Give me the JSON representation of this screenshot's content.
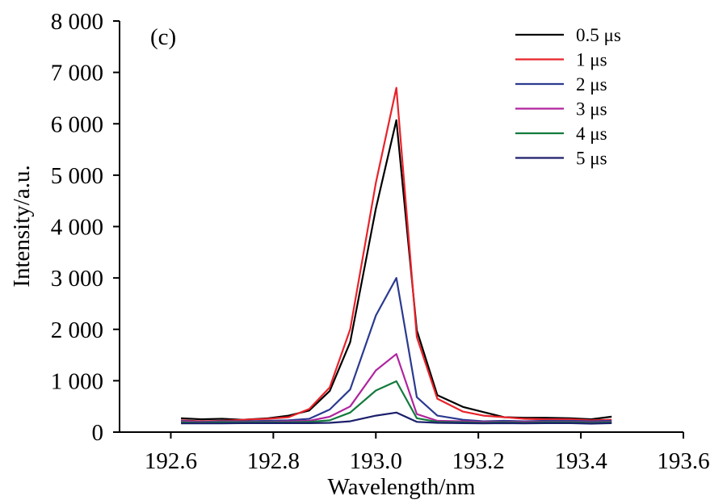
{
  "chart_data": {
    "type": "line",
    "panel_label": "(c)",
    "xlabel": "Wavelength/nm",
    "ylabel": "Intensity/a.u.",
    "xlim": [
      192.5,
      193.6
    ],
    "ylim": [
      0,
      8000
    ],
    "x_ticks": [
      192.6,
      192.8,
      193.0,
      193.2,
      193.4,
      193.6
    ],
    "x_tick_labels": [
      "192.6",
      "192.8",
      "193.0",
      "193.2",
      "193.4",
      "193.6"
    ],
    "y_ticks": [
      0,
      1000,
      2000,
      3000,
      4000,
      5000,
      6000,
      7000,
      8000
    ],
    "y_tick_labels": [
      "0",
      "1 000",
      "2 000",
      "3 000",
      "4 000",
      "5 000",
      "6 000",
      "7 000",
      "8 000"
    ],
    "grid": false,
    "legend_position": "top-right",
    "x": [
      192.62,
      192.66,
      192.7,
      192.74,
      192.79,
      192.83,
      192.87,
      192.91,
      192.95,
      193.0,
      193.04,
      193.08,
      193.12,
      193.17,
      193.21,
      193.25,
      193.29,
      193.33,
      193.38,
      193.42,
      193.46
    ],
    "series": [
      {
        "name": "0.5 μs",
        "color": "#000000",
        "values": [
          270,
          250,
          260,
          240,
          270,
          320,
          420,
          800,
          1750,
          4350,
          6070,
          1980,
          720,
          490,
          390,
          290,
          280,
          280,
          270,
          250,
          300
        ]
      },
      {
        "name": "1 μs",
        "color": "#e8232a",
        "values": [
          230,
          210,
          220,
          240,
          260,
          290,
          450,
          870,
          2000,
          4850,
          6700,
          1850,
          650,
          400,
          320,
          290,
          260,
          250,
          250,
          230,
          240
        ]
      },
      {
        "name": "2 μs",
        "color": "#2b3a8f",
        "values": [
          220,
          200,
          210,
          210,
          220,
          230,
          260,
          440,
          830,
          2270,
          3000,
          680,
          320,
          240,
          210,
          220,
          210,
          220,
          220,
          210,
          220
        ]
      },
      {
        "name": "3 μs",
        "color": "#b0249e",
        "values": [
          210,
          190,
          200,
          200,
          200,
          210,
          220,
          300,
          500,
          1200,
          1520,
          350,
          220,
          210,
          200,
          200,
          200,
          200,
          200,
          190,
          200
        ]
      },
      {
        "name": "4 μs",
        "color": "#137a3c",
        "values": [
          190,
          180,
          190,
          190,
          190,
          190,
          200,
          230,
          380,
          810,
          990,
          270,
          200,
          190,
          180,
          190,
          180,
          190,
          190,
          180,
          190
        ]
      },
      {
        "name": "5 μs",
        "color": "#1c1f6b",
        "values": [
          170,
          170,
          170,
          175,
          175,
          175,
          175,
          180,
          210,
          320,
          380,
          200,
          180,
          175,
          170,
          175,
          170,
          175,
          175,
          165,
          175
        ]
      }
    ]
  }
}
